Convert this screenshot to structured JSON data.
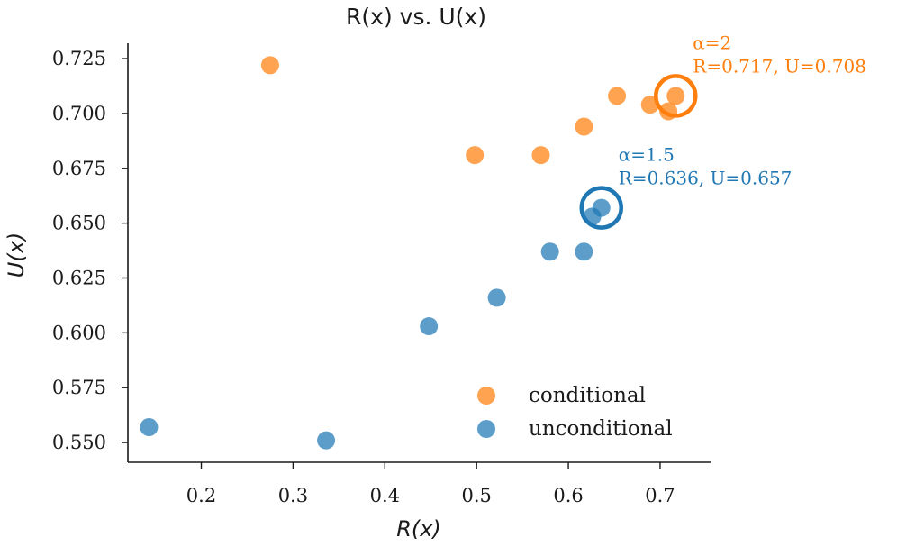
{
  "chart_data": {
    "type": "scatter",
    "title": "R(x) vs. U(x)",
    "xlabel": "R(x)",
    "ylabel": "U(x)",
    "xlim": [
      0.12,
      0.755
    ],
    "ylim": [
      0.541,
      0.732
    ],
    "x_ticks": [
      0.2,
      0.3,
      0.4,
      0.5,
      0.6,
      0.7
    ],
    "x_tick_labels": [
      "0.2",
      "0.3",
      "0.4",
      "0.5",
      "0.6",
      "0.7"
    ],
    "y_ticks": [
      0.55,
      0.575,
      0.6,
      0.625,
      0.65,
      0.675,
      0.7,
      0.725
    ],
    "y_tick_labels": [
      "0.550",
      "0.575",
      "0.600",
      "0.625",
      "0.650",
      "0.675",
      "0.700",
      "0.725"
    ],
    "grid": false,
    "legend_position": "bottom-right",
    "series": [
      {
        "name": "conditional",
        "color": "#ff7f0e",
        "points": [
          {
            "x": 0.275,
            "y": 0.722
          },
          {
            "x": 0.498,
            "y": 0.681
          },
          {
            "x": 0.57,
            "y": 0.681
          },
          {
            "x": 0.617,
            "y": 0.694
          },
          {
            "x": 0.653,
            "y": 0.708
          },
          {
            "x": 0.689,
            "y": 0.704
          },
          {
            "x": 0.709,
            "y": 0.701
          },
          {
            "x": 0.717,
            "y": 0.708
          }
        ]
      },
      {
        "name": "unconditional",
        "color": "#1f77b4",
        "points": [
          {
            "x": 0.143,
            "y": 0.557
          },
          {
            "x": 0.336,
            "y": 0.551
          },
          {
            "x": 0.448,
            "y": 0.603
          },
          {
            "x": 0.522,
            "y": 0.616
          },
          {
            "x": 0.58,
            "y": 0.637
          },
          {
            "x": 0.617,
            "y": 0.637
          },
          {
            "x": 0.626,
            "y": 0.653
          },
          {
            "x": 0.636,
            "y": 0.657
          }
        ]
      }
    ],
    "annotations": [
      {
        "series": "conditional",
        "color": "#ff7f0e",
        "x": 0.717,
        "y": 0.708,
        "line1": "α=2",
        "line2": "R=0.717, U=0.708"
      },
      {
        "series": "unconditional",
        "color": "#1f77b4",
        "x": 0.636,
        "y": 0.657,
        "line1": "α=1.5",
        "line2": "R=0.636, U=0.657"
      }
    ]
  }
}
